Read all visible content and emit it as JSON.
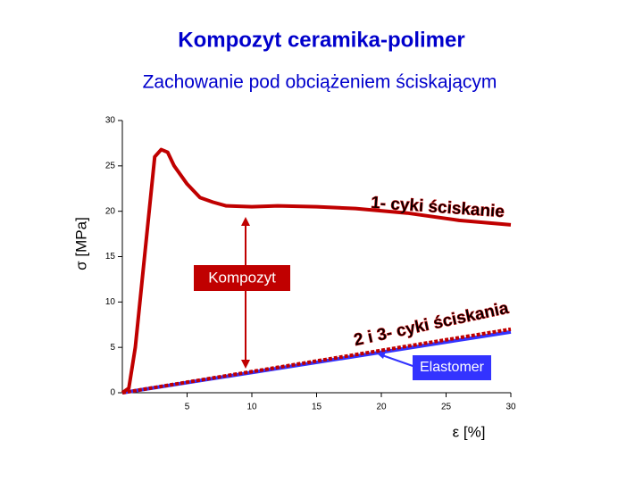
{
  "chart_data": {
    "type": "line",
    "title": "Kompozyt ceramika-polimer",
    "subtitle": "Zachowanie pod obciążeniem ściskającym",
    "y_label": "σ [MPa]",
    "x_label": "ε [%]",
    "xlim": [
      0,
      30
    ],
    "ylim": [
      0,
      30
    ],
    "xticks": [
      5,
      10,
      15,
      20,
      25,
      30
    ],
    "yticks": [
      0,
      5,
      10,
      15,
      20,
      25,
      30
    ],
    "series": [
      {
        "name": "Kompozyt",
        "color": "#c00000",
        "dashed": false,
        "x": [
          0,
          0.5,
          1,
          1.5,
          2,
          2.5,
          3,
          3.5,
          4,
          5,
          6,
          7,
          8,
          10,
          12,
          15,
          18,
          22,
          26,
          30
        ],
        "values": [
          0,
          0.5,
          5,
          12,
          19,
          26,
          26.8,
          26.5,
          25,
          23,
          21.5,
          21,
          20.6,
          20.5,
          20.6,
          20.5,
          20.3,
          19.8,
          19,
          18.5
        ]
      },
      {
        "name": "Kompozyt 2 i 3",
        "color": "#c00000",
        "dashed": true,
        "x": [
          0,
          30
        ],
        "values": [
          0,
          7
        ]
      },
      {
        "name": "Elastomer",
        "color": "#3333ff",
        "dashed": false,
        "x": [
          0,
          30
        ],
        "values": [
          0,
          6.7
        ]
      }
    ],
    "annotations": [
      "1- cyki ściskanie",
      "2 i 3- cyki ściskania"
    ]
  }
}
